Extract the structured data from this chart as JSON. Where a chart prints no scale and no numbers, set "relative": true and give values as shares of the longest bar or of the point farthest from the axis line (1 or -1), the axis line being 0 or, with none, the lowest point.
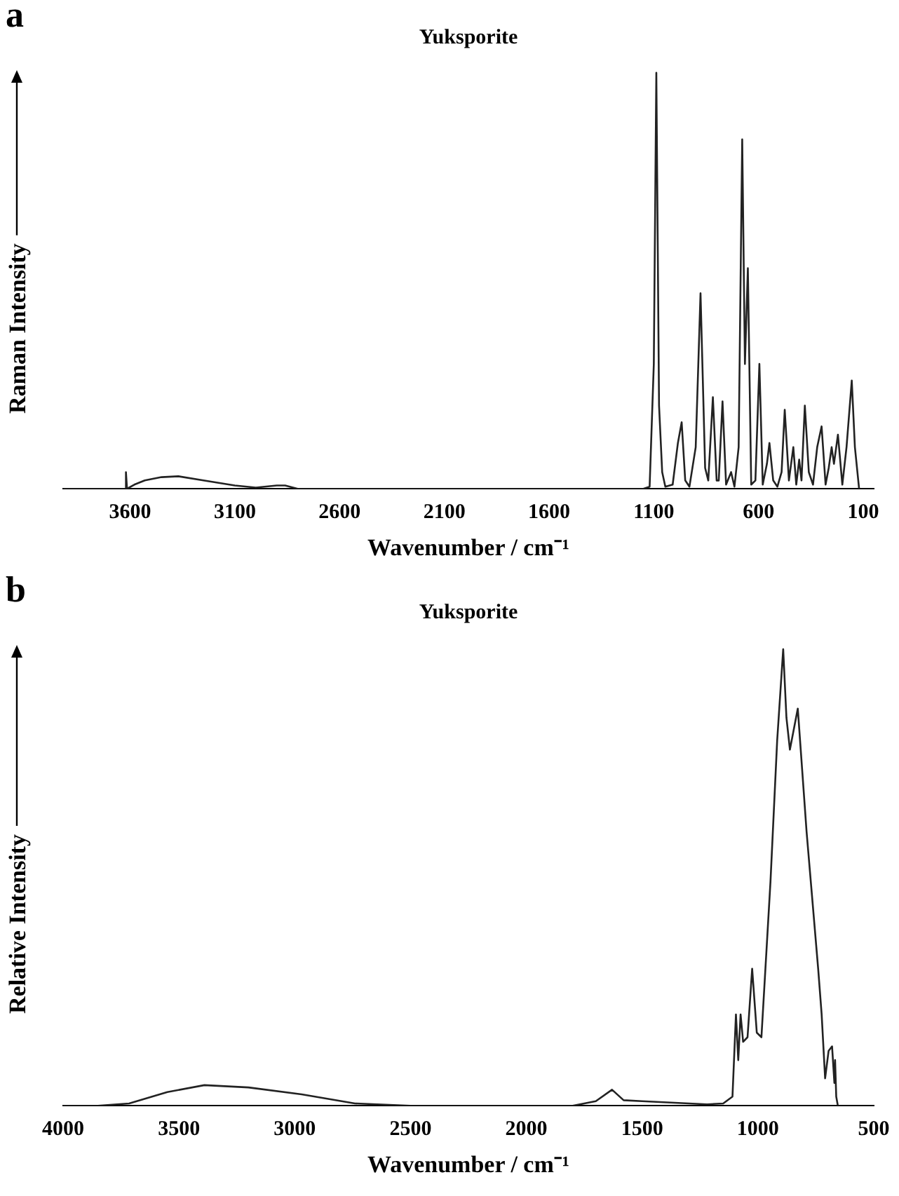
{
  "chart_data": [
    {
      "type": "line",
      "title": "Yuksporite",
      "xlabel": "Wavenumber / cm⁻¹",
      "ylabel": "Raman Intensity",
      "annotations": [
        "a"
      ],
      "relative": true,
      "xlim": [
        3920,
        50
      ],
      "xticks": [
        3600,
        3100,
        2600,
        2100,
        1600,
        1100,
        600,
        100
      ],
      "grid": false,
      "legend": false,
      "marker": "none",
      "line_style": "solid",
      "series": [
        {
          "color": "#222222",
          "x": [
            3920,
            3650,
            3625,
            3620,
            3615,
            3580,
            3530,
            3450,
            3370,
            3250,
            3100,
            3000,
            2900,
            2860,
            2800,
            1150,
            1120,
            1100,
            1088,
            1075,
            1060,
            1045,
            1010,
            985,
            967,
            950,
            930,
            900,
            877,
            855,
            840,
            818,
            800,
            790,
            772,
            755,
            731,
            715,
            695,
            678,
            665,
            651,
            635,
            615,
            596,
            580,
            560,
            548,
            530,
            510,
            490,
            475,
            455,
            434,
            420,
            406,
            395,
            379,
            360,
            340,
            320,
            299,
            280,
            265,
            251,
            240,
            221,
            200,
            180,
            155,
            140,
            120
          ],
          "values": [
            0,
            0,
            0,
            0.04,
            0,
            0.01,
            0.02,
            0.028,
            0.03,
            0.02,
            0.008,
            0.003,
            0.008,
            0.008,
            0,
            0,
            0.005,
            0.3,
            1.0,
            0.2,
            0.04,
            0.005,
            0.01,
            0.11,
            0.16,
            0.02,
            0.005,
            0.1,
            0.47,
            0.05,
            0.02,
            0.22,
            0.02,
            0.02,
            0.21,
            0.01,
            0.04,
            0.005,
            0.1,
            0.84,
            0.3,
            0.53,
            0.01,
            0.02,
            0.3,
            0.01,
            0.06,
            0.11,
            0.02,
            0.005,
            0.04,
            0.19,
            0.02,
            0.1,
            0.01,
            0.07,
            0.02,
            0.2,
            0.04,
            0.01,
            0.1,
            0.15,
            0.01,
            0.05,
            0.1,
            0.06,
            0.13,
            0.01,
            0.1,
            0.26,
            0.1,
            0
          ]
        }
      ]
    },
    {
      "type": "line",
      "title": "Yuksporite",
      "xlabel": "Wavenumber / cm⁻¹",
      "ylabel": "Relative Intensity",
      "annotations": [
        "b"
      ],
      "relative": true,
      "xlim": [
        4000,
        500
      ],
      "xticks": [
        4000,
        3500,
        3000,
        2500,
        2000,
        1500,
        1000,
        500
      ],
      "grid": false,
      "legend": false,
      "marker": "none",
      "line_style": "solid",
      "series": [
        {
          "color": "#222222",
          "x": [
            4000,
            3850,
            3715,
            3550,
            3390,
            3200,
            2970,
            2740,
            2500,
            1800,
            1700,
            1630,
            1580,
            1500,
            1220,
            1150,
            1110,
            1095,
            1085,
            1075,
            1064,
            1045,
            1025,
            1005,
            985,
            946,
            917,
            891,
            877,
            862,
            828,
            790,
            740,
            725,
            710,
            695,
            680,
            670,
            667,
            662,
            655
          ],
          "values": [
            0,
            0,
            0.005,
            0.03,
            0.045,
            0.04,
            0.025,
            0.005,
            0,
            0,
            0.01,
            0.035,
            0.012,
            0.01,
            0.003,
            0.005,
            0.02,
            0.2,
            0.1,
            0.2,
            0.14,
            0.15,
            0.3,
            0.16,
            0.15,
            0.49,
            0.8,
            1.0,
            0.85,
            0.78,
            0.87,
            0.6,
            0.3,
            0.2,
            0.06,
            0.12,
            0.13,
            0.05,
            0.1,
            0.02,
            0
          ]
        }
      ]
    }
  ]
}
